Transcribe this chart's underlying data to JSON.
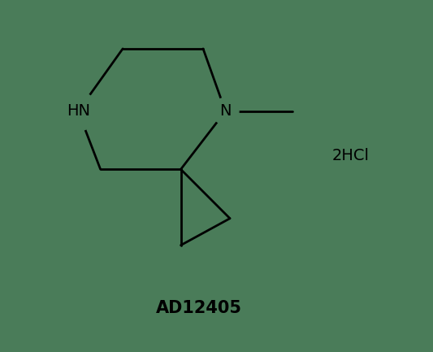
{
  "bg_color": "#4a7c59",
  "line_color": "#000000",
  "line_width": 2.0,
  "label_2hcl": "2HCl",
  "label_id": "AD12405",
  "label_hn": "HN",
  "label_n": "N",
  "fig_width": 5.33,
  "fig_height": 4.33,
  "dpi": 100
}
